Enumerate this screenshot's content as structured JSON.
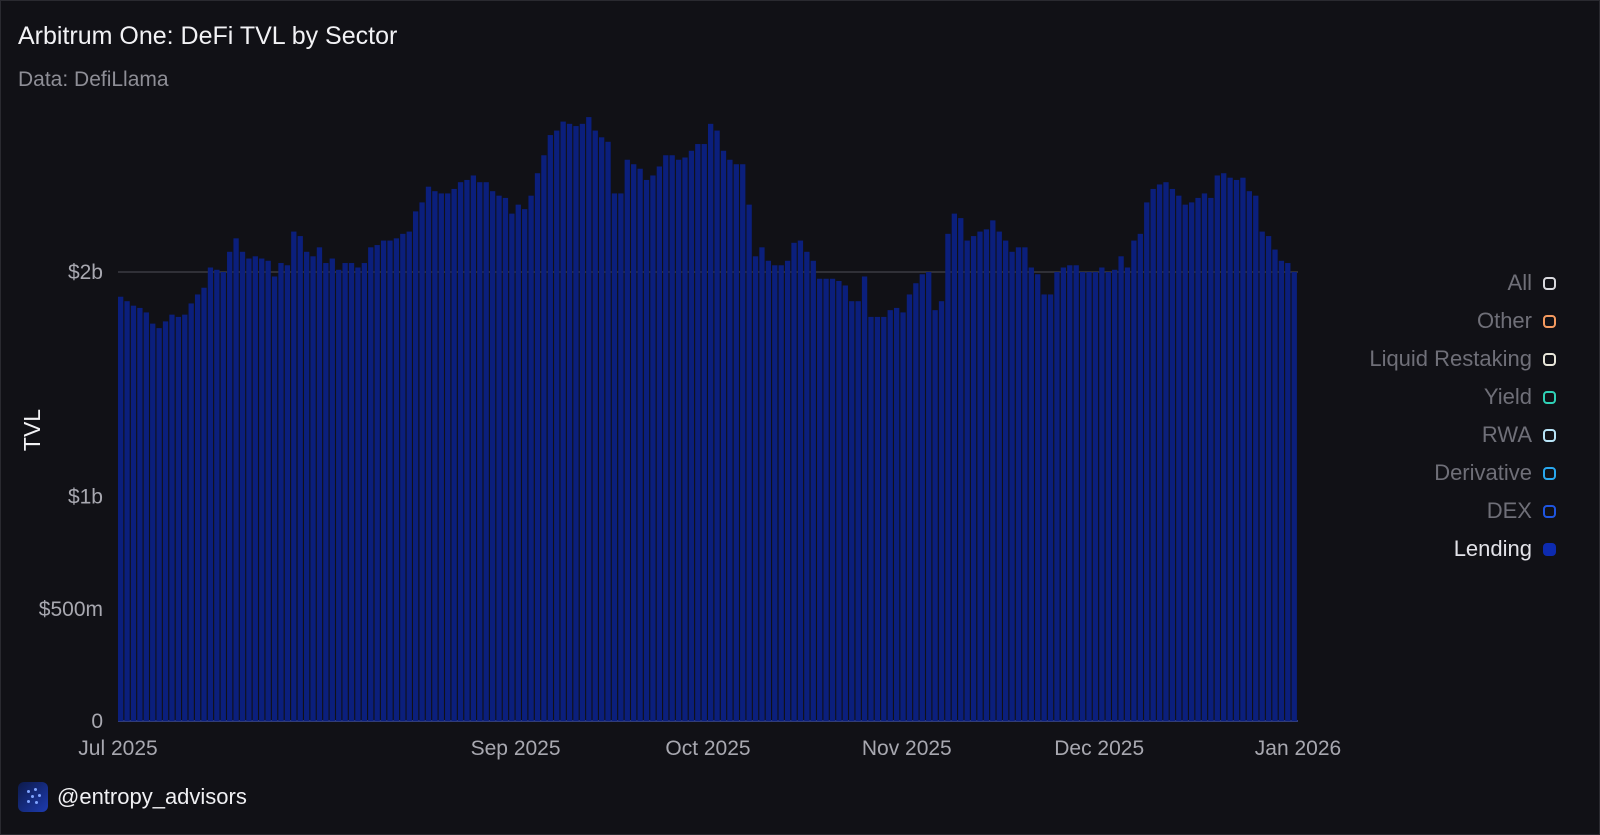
{
  "header": {
    "title": "Arbitrum One: DeFi TVL by Sector",
    "subtitle": "Data: DefiLlama"
  },
  "footer": {
    "handle": "@entropy_advisors",
    "logo_icon": "entropy-logo-icon"
  },
  "legend": {
    "items": [
      {
        "label": "All",
        "color": "#d9d9de",
        "active": false
      },
      {
        "label": "Other",
        "color": "#f59a5f",
        "active": false
      },
      {
        "label": "Liquid Restaking",
        "color": "#e8e6da",
        "active": false
      },
      {
        "label": "Yield",
        "color": "#2fd1b6",
        "active": false
      },
      {
        "label": "RWA",
        "color": "#b8e4f7",
        "active": false
      },
      {
        "label": "Derivative",
        "color": "#29a8ef",
        "active": false
      },
      {
        "label": "DEX",
        "color": "#1f55e0",
        "active": false
      },
      {
        "label": "Lending",
        "color": "#0d2bb0",
        "active": true
      }
    ]
  },
  "chart_data": {
    "type": "bar",
    "title": "Arbitrum One: DeFi TVL by Sector",
    "subtitle": "Data: DefiLlama",
    "xlabel": "",
    "ylabel": "TVL",
    "ylim": [
      0,
      3000000000
    ],
    "y_ticks": [
      {
        "value": 0,
        "label": "0"
      },
      {
        "value": 500000000,
        "label": "$500m"
      },
      {
        "value": 1000000000,
        "label": "$1b"
      },
      {
        "value": 2000000000,
        "label": "$2b"
      }
    ],
    "x_ticks": [
      "Jul 2025",
      "Sep 2025",
      "Oct 2025",
      "Nov 2025",
      "Dec 2025",
      "Jan 2026"
    ],
    "x_tick_dates": [
      "2025-07-01",
      "2025-09-01",
      "2025-10-01",
      "2025-11-01",
      "2025-12-01",
      "2026-01-01"
    ],
    "bar_color": "#0b1f7c",
    "bar_top_color": "#1530b8",
    "grid_line_color": "#3a3a42",
    "grid_line_at": 2000000000,
    "start_date": "2025-07-01",
    "series": [
      {
        "name": "Lending",
        "values": [
          1.89,
          1.87,
          1.85,
          1.84,
          1.82,
          1.77,
          1.75,
          1.78,
          1.81,
          1.8,
          1.81,
          1.86,
          1.9,
          1.93,
          2.02,
          2.01,
          2.0,
          2.09,
          2.15,
          2.09,
          2.06,
          2.07,
          2.06,
          2.05,
          1.98,
          2.04,
          2.03,
          2.18,
          2.16,
          2.09,
          2.07,
          2.11,
          2.04,
          2.06,
          2.01,
          2.04,
          2.04,
          2.02,
          2.04,
          2.11,
          2.12,
          2.14,
          2.14,
          2.15,
          2.17,
          2.18,
          2.27,
          2.31,
          2.38,
          2.36,
          2.35,
          2.35,
          2.37,
          2.4,
          2.41,
          2.43,
          2.4,
          2.4,
          2.36,
          2.34,
          2.33,
          2.26,
          2.3,
          2.28,
          2.34,
          2.44,
          2.52,
          2.61,
          2.63,
          2.67,
          2.66,
          2.65,
          2.66,
          2.69,
          2.63,
          2.6,
          2.58,
          2.35,
          2.35,
          2.5,
          2.48,
          2.46,
          2.41,
          2.43,
          2.47,
          2.52,
          2.52,
          2.5,
          2.51,
          2.54,
          2.57,
          2.57,
          2.66,
          2.63,
          2.54,
          2.5,
          2.48,
          2.48,
          2.3,
          2.07,
          2.11,
          2.05,
          2.03,
          2.03,
          2.05,
          2.13,
          2.14,
          2.09,
          2.05,
          1.97,
          1.97,
          1.97,
          1.96,
          1.94,
          1.87,
          1.87,
          1.98,
          1.8,
          1.8,
          1.8,
          1.83,
          1.84,
          1.82,
          1.9,
          1.95,
          1.99,
          2.0,
          1.83,
          1.87,
          2.17,
          2.26,
          2.24,
          2.14,
          2.16,
          2.18,
          2.19,
          2.23,
          2.18,
          2.14,
          2.09,
          2.11,
          2.11,
          2.02,
          1.99,
          1.9,
          1.9,
          2.0,
          2.02,
          2.03,
          2.03,
          2.0,
          2.0,
          2.0,
          2.02,
          2.0,
          2.01,
          2.07,
          2.02,
          2.14,
          2.17,
          2.31,
          2.37,
          2.39,
          2.4,
          2.37,
          2.34,
          2.3,
          2.31,
          2.33,
          2.35,
          2.33,
          2.43,
          2.44,
          2.42,
          2.41,
          2.42,
          2.36,
          2.34,
          2.18,
          2.16,
          2.1,
          2.05,
          2.04,
          2.0
        ],
        "unit": "billion USD"
      }
    ]
  }
}
